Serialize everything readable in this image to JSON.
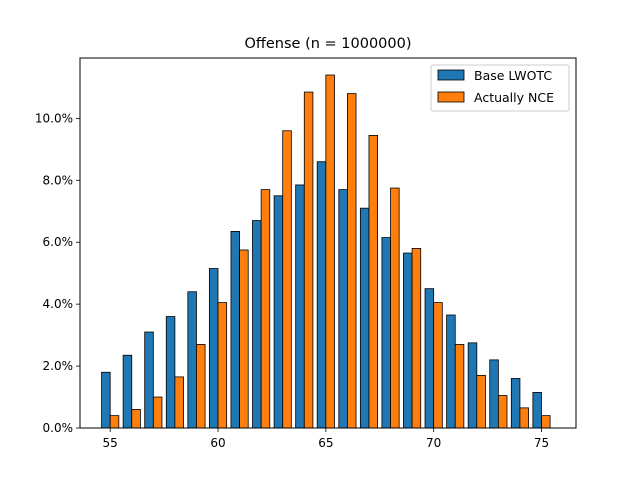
{
  "chart_data": {
    "type": "bar",
    "title": "Offense (n = 1000000)",
    "xlabel": "",
    "ylabel": "",
    "x": [
      55,
      56,
      57,
      58,
      59,
      60,
      61,
      62,
      63,
      64,
      65,
      66,
      67,
      68,
      69,
      70,
      71,
      72,
      73,
      74,
      75
    ],
    "series": [
      {
        "name": "Base LWOTC",
        "color": "#1f77b4",
        "values": [
          1.8,
          2.35,
          3.1,
          3.6,
          4.4,
          5.15,
          6.35,
          6.7,
          7.5,
          7.85,
          8.6,
          7.7,
          7.1,
          6.15,
          5.65,
          4.5,
          3.65,
          2.75,
          2.2,
          1.6,
          1.15
        ]
      },
      {
        "name": "Actually NCE",
        "color": "#ff7f0e",
        "values": [
          0.4,
          0.6,
          1.0,
          1.65,
          2.7,
          4.05,
          5.75,
          7.7,
          9.6,
          10.85,
          11.4,
          10.8,
          9.45,
          7.75,
          5.8,
          4.05,
          2.7,
          1.7,
          1.05,
          0.65,
          0.4
        ]
      }
    ],
    "xlim": [
      53.6,
      76.6
    ],
    "ylim": [
      0,
      11.95
    ],
    "xticks": [
      "55",
      "60",
      "65",
      "70",
      "75"
    ],
    "yticks": [
      "0.0%",
      "2.0%",
      "4.0%",
      "6.0%",
      "8.0%",
      "10.0%"
    ],
    "grid": false,
    "legend_position": "top-right"
  }
}
